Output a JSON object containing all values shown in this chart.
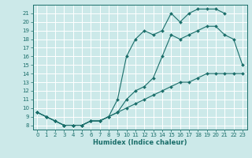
{
  "xlabel": "Humidex (Indice chaleur)",
  "bg_color": "#cce9e9",
  "grid_color": "#ffffff",
  "line_color": "#1a6e6a",
  "xlim_min": -0.5,
  "xlim_max": 23.5,
  "ylim_min": 7.5,
  "ylim_max": 22.0,
  "yticks": [
    8,
    9,
    10,
    11,
    12,
    13,
    14,
    15,
    16,
    17,
    18,
    19,
    20,
    21
  ],
  "xticks": [
    0,
    1,
    2,
    3,
    4,
    5,
    6,
    7,
    8,
    9,
    10,
    11,
    12,
    13,
    14,
    15,
    16,
    17,
    18,
    19,
    20,
    21,
    22,
    23
  ],
  "line1_x": [
    0,
    1,
    2,
    3,
    4,
    5,
    6,
    7,
    8,
    9,
    10,
    11,
    12,
    13,
    14,
    15,
    16,
    17,
    18,
    19,
    20,
    21,
    22,
    23
  ],
  "line1_y": [
    9.5,
    9.0,
    8.5,
    8.0,
    8.0,
    8.0,
    8.5,
    8.5,
    9.0,
    9.5,
    10.0,
    10.5,
    11.0,
    11.5,
    12.0,
    12.5,
    13.0,
    13.0,
    13.5,
    14.0,
    14.0,
    14.0,
    14.0,
    14.0
  ],
  "line2_x": [
    0,
    1,
    2,
    3,
    4,
    5,
    6,
    7,
    8,
    9,
    10,
    11,
    12,
    13,
    14,
    15,
    16,
    17,
    18,
    19,
    20,
    21,
    22,
    23
  ],
  "line2_y": [
    9.5,
    9.0,
    8.5,
    8.0,
    8.0,
    8.0,
    8.5,
    8.5,
    9.0,
    9.5,
    11.0,
    12.0,
    12.5,
    13.5,
    16.0,
    18.5,
    18.0,
    18.5,
    19.0,
    19.5,
    19.5,
    18.5,
    18.0,
    15.0
  ],
  "line3_x": [
    0,
    1,
    2,
    3,
    4,
    5,
    6,
    7,
    8,
    9,
    10,
    11,
    12,
    13,
    14,
    15,
    16,
    17,
    18,
    19,
    20,
    21
  ],
  "line3_y": [
    9.5,
    9.0,
    8.5,
    8.0,
    8.0,
    8.0,
    8.5,
    8.5,
    9.0,
    11.0,
    16.0,
    18.0,
    19.0,
    18.5,
    19.0,
    21.0,
    20.0,
    21.0,
    21.5,
    21.5,
    21.5,
    21.0
  ]
}
